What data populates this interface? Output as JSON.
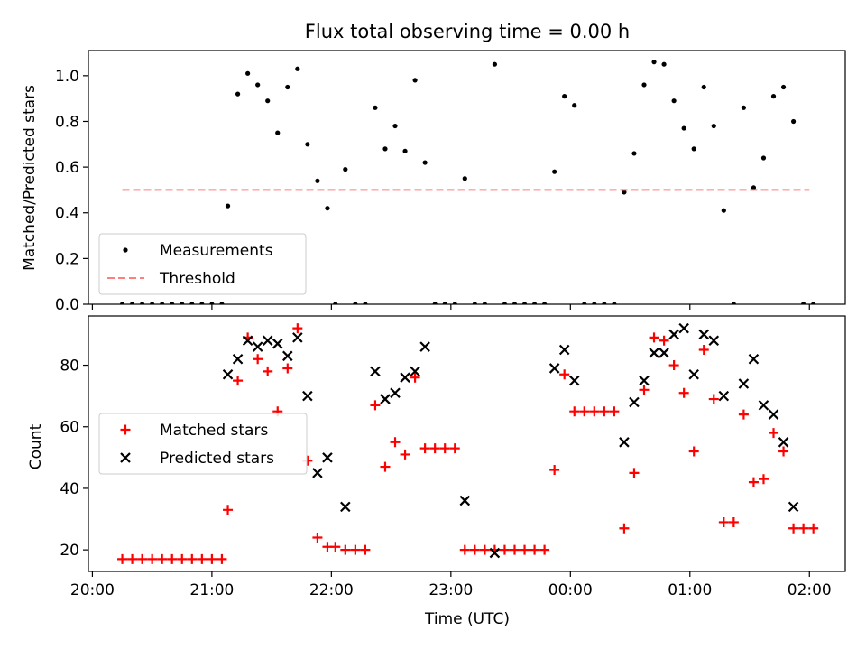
{
  "chart_data": [
    {
      "type": "scatter",
      "title": "Flux total observing time = 0.00 h",
      "xlabel": "",
      "ylabel": "Matched/Predicted stars",
      "xlim": [
        "19:58",
        "02:18"
      ],
      "ylim": [
        0,
        1.11
      ],
      "x_ticks": [
        "20:00",
        "21:00",
        "22:00",
        "23:00",
        "00:00",
        "01:00",
        "02:00"
      ],
      "y_ticks": [
        "0.0",
        "0.2",
        "0.4",
        "0.6",
        "0.8",
        "1.0"
      ],
      "legend_position": "lower-left",
      "grid": false,
      "series": [
        {
          "name": "Measurements",
          "marker": "dot",
          "color": "#000000",
          "points": [
            [
              "20:15",
              0.0
            ],
            [
              "20:20",
              0.0
            ],
            [
              "20:25",
              0.0
            ],
            [
              "20:30",
              0.0
            ],
            [
              "20:35",
              0.0
            ],
            [
              "20:40",
              0.0
            ],
            [
              "20:45",
              0.0
            ],
            [
              "20:50",
              0.0
            ],
            [
              "20:55",
              0.0
            ],
            [
              "21:00",
              0.0
            ],
            [
              "21:05",
              0.0
            ],
            [
              "21:08",
              0.43
            ],
            [
              "21:13",
              0.92
            ],
            [
              "21:18",
              1.01
            ],
            [
              "21:23",
              0.96
            ],
            [
              "21:28",
              0.89
            ],
            [
              "21:33",
              0.75
            ],
            [
              "21:38",
              0.95
            ],
            [
              "21:43",
              1.03
            ],
            [
              "21:48",
              0.7
            ],
            [
              "21:53",
              0.54
            ],
            [
              "21:58",
              0.42
            ],
            [
              "22:02",
              0.0
            ],
            [
              "22:07",
              0.59
            ],
            [
              "22:12",
              0.0
            ],
            [
              "22:17",
              0.0
            ],
            [
              "22:22",
              0.86
            ],
            [
              "22:27",
              0.68
            ],
            [
              "22:32",
              0.78
            ],
            [
              "22:37",
              0.67
            ],
            [
              "22:42",
              0.98
            ],
            [
              "22:47",
              0.62
            ],
            [
              "22:52",
              0.0
            ],
            [
              "22:57",
              0.0
            ],
            [
              "23:02",
              0.0
            ],
            [
              "23:07",
              0.55
            ],
            [
              "23:12",
              0.0
            ],
            [
              "23:17",
              0.0
            ],
            [
              "23:22",
              1.05
            ],
            [
              "23:27",
              0.0
            ],
            [
              "23:32",
              0.0
            ],
            [
              "23:37",
              0.0
            ],
            [
              "23:42",
              0.0
            ],
            [
              "23:47",
              0.0
            ],
            [
              "23:52",
              0.58
            ],
            [
              "23:57",
              0.91
            ],
            [
              "00:02",
              0.87
            ],
            [
              "00:07",
              0.0
            ],
            [
              "00:12",
              0.0
            ],
            [
              "00:17",
              0.0
            ],
            [
              "00:22",
              0.0
            ],
            [
              "00:27",
              0.49
            ],
            [
              "00:32",
              0.66
            ],
            [
              "00:37",
              0.96
            ],
            [
              "00:42",
              1.06
            ],
            [
              "00:47",
              1.05
            ],
            [
              "00:52",
              0.89
            ],
            [
              "00:57",
              0.77
            ],
            [
              "01:02",
              0.68
            ],
            [
              "01:07",
              0.95
            ],
            [
              "01:12",
              0.78
            ],
            [
              "01:17",
              0.41
            ],
            [
              "01:22",
              0.0
            ],
            [
              "01:27",
              0.86
            ],
            [
              "01:32",
              0.51
            ],
            [
              "01:37",
              0.64
            ],
            [
              "01:42",
              0.91
            ],
            [
              "01:47",
              0.95
            ],
            [
              "01:52",
              0.8
            ],
            [
              "01:57",
              0.0
            ],
            [
              "02:02",
              0.0
            ]
          ]
        },
        {
          "name": "Threshold",
          "marker": "dashed-line",
          "color": "#ff7f7f",
          "points": [
            [
              "20:15",
              0.5
            ],
            [
              "02:00",
              0.5
            ]
          ]
        }
      ]
    },
    {
      "type": "scatter",
      "title": "",
      "xlabel": "Time (UTC)",
      "ylabel": "Count",
      "xlim": [
        "19:58",
        "02:18"
      ],
      "ylim": [
        13,
        96
      ],
      "x_ticks": [
        "20:00",
        "21:00",
        "22:00",
        "23:00",
        "00:00",
        "01:00",
        "02:00"
      ],
      "y_ticks": [
        "20",
        "40",
        "60",
        "80"
      ],
      "legend_position": "center-left",
      "grid": false,
      "series": [
        {
          "name": "Matched stars",
          "marker": "plus",
          "color": "#ff0000",
          "points": [
            [
              "20:15",
              17
            ],
            [
              "20:20",
              17
            ],
            [
              "20:25",
              17
            ],
            [
              "20:30",
              17
            ],
            [
              "20:35",
              17
            ],
            [
              "20:40",
              17
            ],
            [
              "20:45",
              17
            ],
            [
              "20:50",
              17
            ],
            [
              "20:55",
              17
            ],
            [
              "21:00",
              17
            ],
            [
              "21:05",
              17
            ],
            [
              "21:08",
              33
            ],
            [
              "21:13",
              75
            ],
            [
              "21:18",
              89
            ],
            [
              "21:23",
              82
            ],
            [
              "21:28",
              78
            ],
            [
              "21:33",
              65
            ],
            [
              "21:38",
              79
            ],
            [
              "21:43",
              92
            ],
            [
              "21:48",
              49
            ],
            [
              "21:53",
              24
            ],
            [
              "21:58",
              21
            ],
            [
              "22:02",
              21
            ],
            [
              "22:07",
              20
            ],
            [
              "22:12",
              20
            ],
            [
              "22:17",
              20
            ],
            [
              "22:22",
              67
            ],
            [
              "22:27",
              47
            ],
            [
              "22:32",
              55
            ],
            [
              "22:37",
              51
            ],
            [
              "22:42",
              76
            ],
            [
              "22:47",
              53
            ],
            [
              "22:52",
              53
            ],
            [
              "22:57",
              53
            ],
            [
              "23:02",
              53
            ],
            [
              "23:07",
              20
            ],
            [
              "23:12",
              20
            ],
            [
              "23:17",
              20
            ],
            [
              "23:22",
              20
            ],
            [
              "23:27",
              20
            ],
            [
              "23:32",
              20
            ],
            [
              "23:37",
              20
            ],
            [
              "23:42",
              20
            ],
            [
              "23:47",
              20
            ],
            [
              "23:52",
              46
            ],
            [
              "23:57",
              77
            ],
            [
              "00:02",
              65
            ],
            [
              "00:07",
              65
            ],
            [
              "00:12",
              65
            ],
            [
              "00:17",
              65
            ],
            [
              "00:22",
              65
            ],
            [
              "00:27",
              27
            ],
            [
              "00:32",
              45
            ],
            [
              "00:37",
              72
            ],
            [
              "00:42",
              89
            ],
            [
              "00:47",
              88
            ],
            [
              "00:52",
              80
            ],
            [
              "00:57",
              71
            ],
            [
              "01:02",
              52
            ],
            [
              "01:07",
              85
            ],
            [
              "01:12",
              69
            ],
            [
              "01:17",
              29
            ],
            [
              "01:22",
              29
            ],
            [
              "01:27",
              64
            ],
            [
              "01:32",
              42
            ],
            [
              "01:37",
              43
            ],
            [
              "01:42",
              58
            ],
            [
              "01:47",
              52
            ],
            [
              "01:52",
              27
            ],
            [
              "01:57",
              27
            ],
            [
              "02:02",
              27
            ]
          ]
        },
        {
          "name": "Predicted stars",
          "marker": "x",
          "color": "#000000",
          "points": [
            [
              "21:08",
              77
            ],
            [
              "21:13",
              82
            ],
            [
              "21:18",
              88
            ],
            [
              "21:23",
              86
            ],
            [
              "21:28",
              88
            ],
            [
              "21:33",
              87
            ],
            [
              "21:38",
              83
            ],
            [
              "21:43",
              89
            ],
            [
              "21:48",
              70
            ],
            [
              "21:53",
              45
            ],
            [
              "21:58",
              50
            ],
            [
              "22:07",
              34
            ],
            [
              "22:22",
              78
            ],
            [
              "22:27",
              69
            ],
            [
              "22:32",
              71
            ],
            [
              "22:37",
              76
            ],
            [
              "22:42",
              78
            ],
            [
              "22:47",
              86
            ],
            [
              "23:07",
              36
            ],
            [
              "23:22",
              19
            ],
            [
              "23:52",
              79
            ],
            [
              "23:57",
              85
            ],
            [
              "00:02",
              75
            ],
            [
              "00:27",
              55
            ],
            [
              "00:32",
              68
            ],
            [
              "00:37",
              75
            ],
            [
              "00:42",
              84
            ],
            [
              "00:47",
              84
            ],
            [
              "00:52",
              90
            ],
            [
              "00:57",
              92
            ],
            [
              "01:02",
              77
            ],
            [
              "01:07",
              90
            ],
            [
              "01:12",
              88
            ],
            [
              "01:17",
              70
            ],
            [
              "01:27",
              74
            ],
            [
              "01:32",
              82
            ],
            [
              "01:37",
              67
            ],
            [
              "01:42",
              64
            ],
            [
              "01:47",
              55
            ],
            [
              "01:52",
              34
            ]
          ]
        }
      ]
    }
  ]
}
